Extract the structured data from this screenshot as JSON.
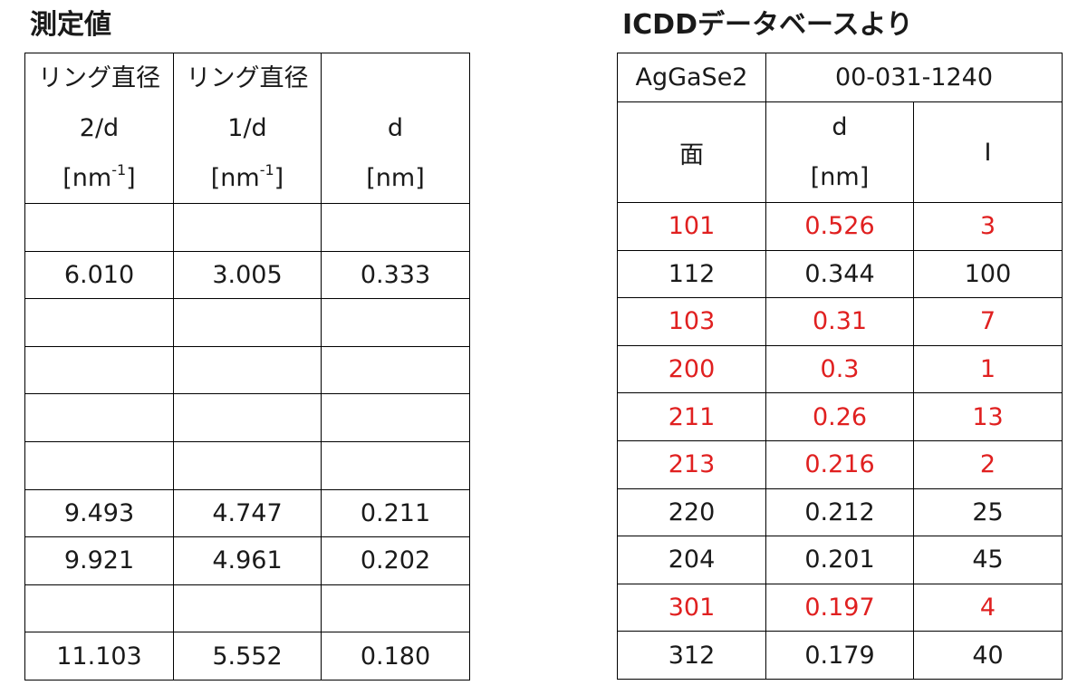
{
  "measured": {
    "title": "測定値",
    "headers": [
      {
        "l1": "リング直径",
        "l2": "2/d",
        "unit_pre": "[nm",
        "unit_sup": "-1",
        "unit_post": "]"
      },
      {
        "l1": "リング直径",
        "l2": "1/d",
        "unit_pre": "[nm",
        "unit_sup": "-1",
        "unit_post": "]"
      },
      {
        "l1": "",
        "l2": "d",
        "unit_pre": "[nm]",
        "unit_sup": "",
        "unit_post": ""
      }
    ],
    "rows": [
      [
        "",
        "",
        ""
      ],
      [
        "6.010",
        "3.005",
        "0.333"
      ],
      [
        "",
        "",
        ""
      ],
      [
        "",
        "",
        ""
      ],
      [
        "",
        "",
        ""
      ],
      [
        "",
        "",
        ""
      ],
      [
        "9.493",
        "4.747",
        "0.211"
      ],
      [
        "9.921",
        "4.961",
        "0.202"
      ],
      [
        "",
        "",
        ""
      ],
      [
        "11.103",
        "5.552",
        "0.180"
      ]
    ]
  },
  "icdd": {
    "title": "ICDDデータベースより",
    "compound": "AgGaSe2",
    "card_number": "00-031-1240",
    "headers": {
      "plane": "面",
      "d_label": "d",
      "d_unit": "[nm]",
      "intensity": "I"
    },
    "rows": [
      {
        "plane": "101",
        "d": "0.526",
        "i": "3",
        "highlight": true
      },
      {
        "plane": "112",
        "d": "0.344",
        "i": "100",
        "highlight": false
      },
      {
        "plane": "103",
        "d": "0.31",
        "i": "7",
        "highlight": true
      },
      {
        "plane": "200",
        "d": "0.3",
        "i": "1",
        "highlight": true
      },
      {
        "plane": "211",
        "d": "0.26",
        "i": "13",
        "highlight": true
      },
      {
        "plane": "213",
        "d": "0.216",
        "i": "2",
        "highlight": true
      },
      {
        "plane": "220",
        "d": "0.212",
        "i": "25",
        "highlight": false
      },
      {
        "plane": "204",
        "d": "0.201",
        "i": "45",
        "highlight": false
      },
      {
        "plane": "301",
        "d": "0.197",
        "i": "4",
        "highlight": true
      },
      {
        "plane": "312",
        "d": "0.179",
        "i": "40",
        "highlight": false
      }
    ]
  },
  "colors": {
    "highlight": "#e02020",
    "text": "#1a1a1a",
    "border": "#000000"
  }
}
